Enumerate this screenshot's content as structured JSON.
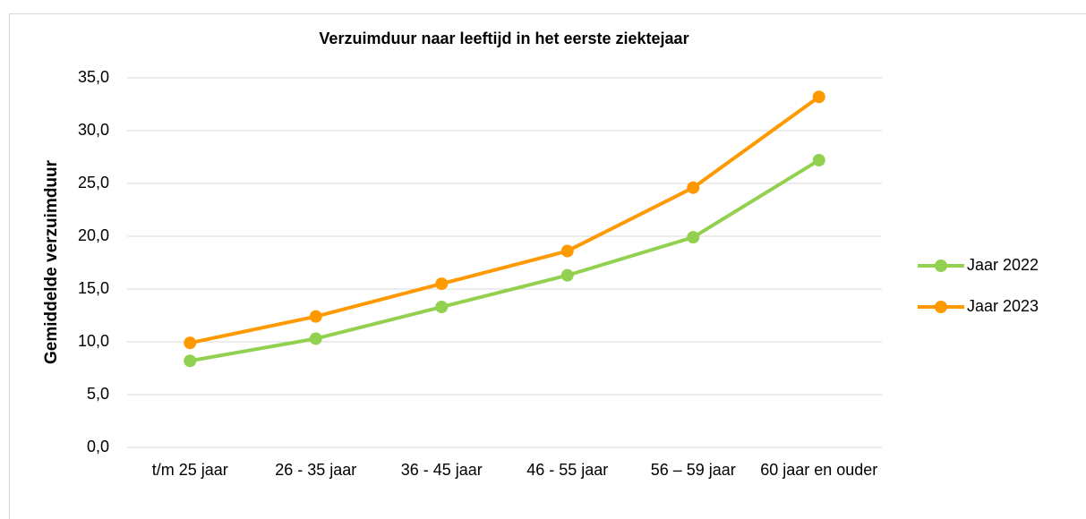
{
  "chart_data": {
    "type": "line",
    "title": "Verzuimduur naar leeftijd in het eerste ziektejaar",
    "y_label": "Gemiddelde verzuimduur",
    "categories": [
      "t/m 25 jaar",
      "26 - 35 jaar",
      "36 - 45 jaar",
      "46 - 55 jaar",
      "56 – 59 jaar",
      "60 jaar en ouder"
    ],
    "series": [
      {
        "name": "Jaar 2022",
        "color": "#92d050",
        "values": [
          8.2,
          10.3,
          13.3,
          16.3,
          19.9,
          27.2
        ]
      },
      {
        "name": "Jaar 2023",
        "color": "#ff9900",
        "values": [
          9.9,
          12.4,
          15.5,
          18.6,
          24.6,
          33.2
        ]
      }
    ],
    "ylim": [
      0,
      35
    ],
    "yticks": [
      {
        "value": 0,
        "label": "0,0"
      },
      {
        "value": 5,
        "label": "5,0"
      },
      {
        "value": 10,
        "label": "10,0"
      },
      {
        "value": 15,
        "label": "15,0"
      },
      {
        "value": 20,
        "label": "20,0"
      },
      {
        "value": 25,
        "label": "25,0"
      },
      {
        "value": 30,
        "label": "30,0"
      },
      {
        "value": 35,
        "label": "35,0"
      }
    ],
    "grid": true,
    "legend": "right"
  }
}
